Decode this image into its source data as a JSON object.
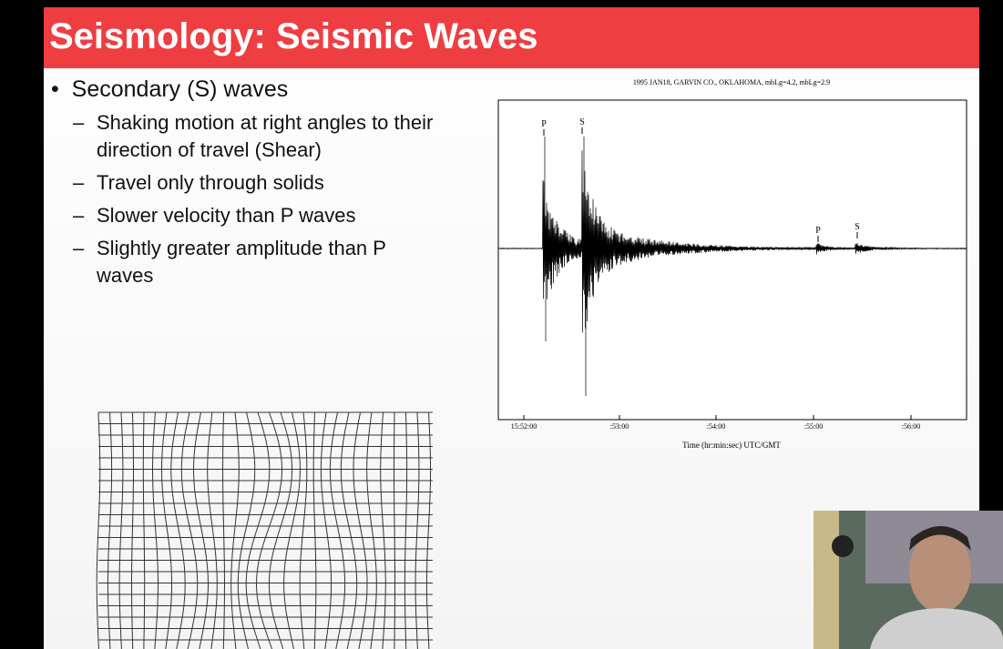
{
  "slide": {
    "title": "Seismology: Seismic Waves",
    "bullets": [
      {
        "text": "Secondary (S) waves",
        "sub": [
          "Shaking motion at right angles to their direction of travel (Shear)",
          "Travel only through solids",
          "Slower velocity than P waves",
          "Slightly greater amplitude than P waves"
        ]
      }
    ]
  },
  "seismogram": {
    "title": "1995 JAN18, GARVIN CO., OKLAHOMA, mbLg=4.2, mbLg=2.9",
    "phase_labels": [
      "P",
      "S",
      "P",
      "S"
    ],
    "time_labels": [
      "15:52:00",
      ":53:00",
      ":54:00",
      ":55:00",
      ":56:00"
    ],
    "axis_label": "Time (hr:min:sec)  UTC/GMT"
  }
}
